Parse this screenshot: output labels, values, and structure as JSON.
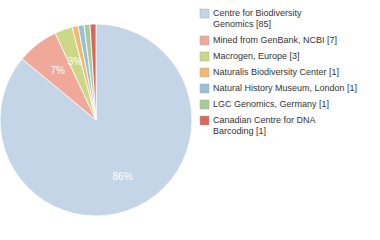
{
  "chart_data": {
    "type": "pie",
    "categories": [
      "Centre for Biodiversity\nGenomics [85]",
      "Mined from GenBank, NCBI [7]",
      "Macrogen, Europe [3]",
      "Naturalis Biodiversity Center [1]",
      "Natural History Museum, London [1]",
      "LGC Genomics, Germany [1]",
      "Canadian Centre for DNA\nBarcoding [1]"
    ],
    "values": [
      86,
      7,
      3,
      1,
      1,
      1,
      1
    ],
    "value_labels": [
      "86%",
      "7%",
      "3%",
      null,
      null,
      null,
      null
    ],
    "colors": [
      "#c5d5e8",
      "#f0a898",
      "#ccd888",
      "#f0b870",
      "#98c0d8",
      "#a8cc98",
      "#d86858"
    ],
    "data_labels": true,
    "legend": "right"
  }
}
